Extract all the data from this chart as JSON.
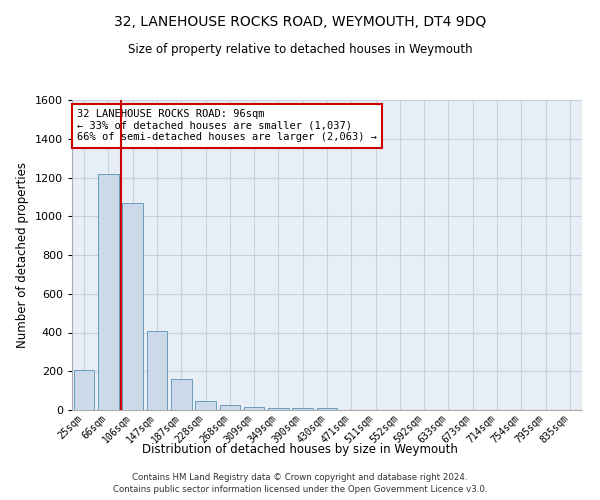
{
  "title": "32, LANEHOUSE ROCKS ROAD, WEYMOUTH, DT4 9DQ",
  "subtitle": "Size of property relative to detached houses in Weymouth",
  "xlabel": "Distribution of detached houses by size in Weymouth",
  "ylabel": "Number of detached properties",
  "bar_color": "#ccd9e8",
  "bar_edge_color": "#6a9cbd",
  "grid_color": "#c8d0dc",
  "background_color": "#e8eef5",
  "categories": [
    "25sqm",
    "66sqm",
    "106sqm",
    "147sqm",
    "187sqm",
    "228sqm",
    "268sqm",
    "309sqm",
    "349sqm",
    "390sqm",
    "430sqm",
    "471sqm",
    "511sqm",
    "552sqm",
    "592sqm",
    "633sqm",
    "673sqm",
    "714sqm",
    "754sqm",
    "795sqm",
    "835sqm"
  ],
  "values": [
    205,
    1220,
    1070,
    410,
    160,
    45,
    27,
    18,
    12,
    8,
    12,
    0,
    0,
    0,
    0,
    0,
    0,
    0,
    0,
    0,
    0
  ],
  "ylim": [
    0,
    1600
  ],
  "yticks": [
    0,
    200,
    400,
    600,
    800,
    1000,
    1200,
    1400,
    1600
  ],
  "vline_color": "#cc0000",
  "annotation_text": "32 LANEHOUSE ROCKS ROAD: 96sqm\n← 33% of detached houses are smaller (1,037)\n66% of semi-detached houses are larger (2,063) →",
  "annotation_box_color": "#ffffff",
  "annotation_box_edge_color": "#cc0000",
  "footer1": "Contains HM Land Registry data © Crown copyright and database right 2024.",
  "footer2": "Contains public sector information licensed under the Open Government Licence v3.0."
}
